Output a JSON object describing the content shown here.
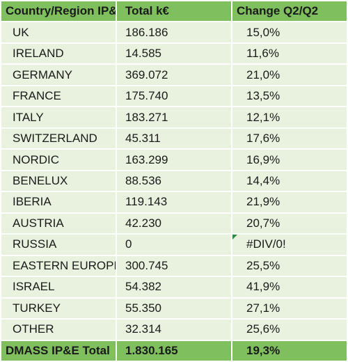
{
  "table": {
    "header": [
      "Country/Region IP&E",
      "Total k€",
      "Change Q2/Q2"
    ],
    "rows": [
      [
        "UK",
        "186.186",
        "15,0%"
      ],
      [
        "IRELAND",
        "14.585",
        "11,6%"
      ],
      [
        "GERMANY",
        "369.072",
        "21,0%"
      ],
      [
        "FRANCE",
        "175.740",
        "13,5%"
      ],
      [
        "ITALY",
        "183.271",
        "12,1%"
      ],
      [
        "SWITZERLAND",
        "45.311",
        "17,6%"
      ],
      [
        "NORDIC",
        "163.299",
        "16,9%"
      ],
      [
        "BENELUX",
        "88.536",
        "14,4%"
      ],
      [
        "IBERIA",
        "119.143",
        "21,9%"
      ],
      [
        "AUSTRIA",
        "42.230",
        "20,7%"
      ],
      [
        "RUSSIA",
        "0",
        "#DIV/0!"
      ],
      [
        "EASTERN EUROPE",
        "300.745",
        "25,5%"
      ],
      [
        "ISRAEL",
        "54.382",
        "41,9%"
      ],
      [
        "TURKEY",
        "55.350",
        "27,1%"
      ],
      [
        "OTHER",
        "32.314",
        "25,6%"
      ]
    ],
    "total": [
      "DMASS IP&E Total",
      "1.830.165",
      "19,3%"
    ]
  }
}
